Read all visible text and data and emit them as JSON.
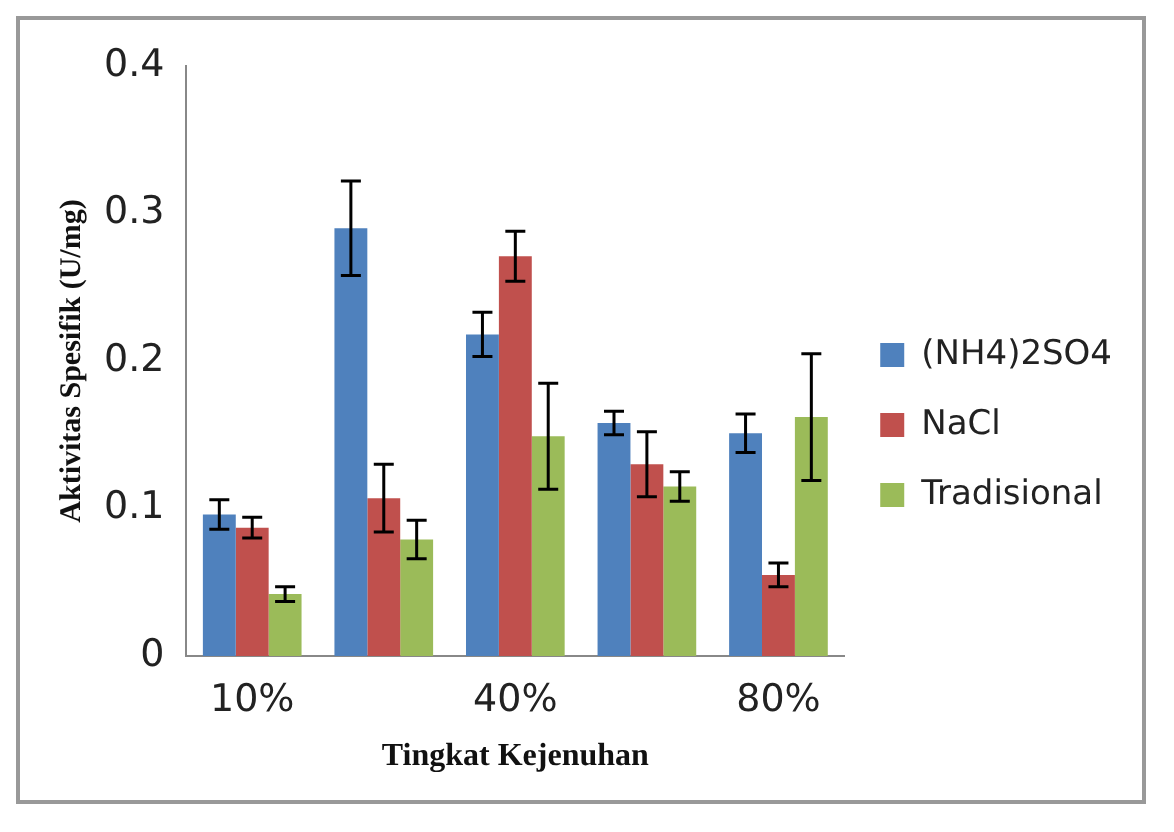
{
  "chart_data": {
    "type": "bar",
    "xlabel": "Tingkat Kejenuhan",
    "ylabel": "Aktivitas Spesifik (U/mg)",
    "categories": [
      "10%",
      null,
      "40%",
      null,
      "80%"
    ],
    "series": [
      {
        "name": "(NH4)2SO4",
        "color": "#4f81bd",
        "values": [
          0.096,
          0.29,
          0.218,
          0.158,
          0.151
        ],
        "errors": [
          0.01,
          0.032,
          0.015,
          0.008,
          0.013
        ]
      },
      {
        "name": "NaCl",
        "color": "#c0504d",
        "values": [
          0.087,
          0.107,
          0.271,
          0.13,
          0.055
        ],
        "errors": [
          0.007,
          0.023,
          0.017,
          0.022,
          0.008
        ]
      },
      {
        "name": "Tradisional",
        "color": "#9bbb59",
        "values": [
          0.042,
          0.079,
          0.149,
          0.115,
          0.162
        ],
        "errors": [
          0.005,
          0.013,
          0.036,
          0.01,
          0.043
        ]
      }
    ],
    "ylim": [
      0,
      0.4
    ],
    "yticks": [
      0,
      0.1,
      0.2,
      0.3,
      0.4
    ],
    "grid": false,
    "legend": "right"
  }
}
